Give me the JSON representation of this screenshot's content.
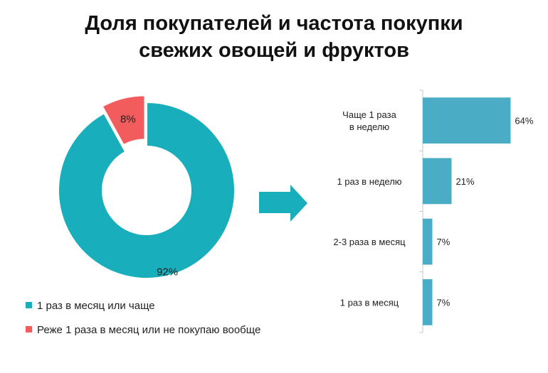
{
  "title_line1": "Доля покупателей и частота покупки",
  "title_line2": "свежих овощей и фруктов",
  "chart_data": [
    {
      "type": "pie",
      "variant": "donut",
      "slices": [
        {
          "name": "1 раз в месяц или чаще",
          "value": 92,
          "label": "92%",
          "color": "#19aebc"
        },
        {
          "name": "Реже 1 раза в месяц или не покупаю вообще",
          "value": 8,
          "label": "8%",
          "color": "#f25c5c"
        }
      ],
      "legend_position": "bottom-left"
    },
    {
      "type": "bar",
      "orientation": "horizontal",
      "categories": [
        "Чаще 1 раза в неделю",
        "1 раз в неделю",
        "2-3 раза в месяц",
        "1 раз в месяц"
      ],
      "values": [
        64,
        21,
        7,
        7
      ],
      "value_labels": [
        "64%",
        "21%",
        "7%",
        "7%"
      ],
      "color": "#4bacc6",
      "xlim": [
        0,
        70
      ]
    }
  ],
  "arrow_icon": "right-arrow-icon",
  "arrow_color": "#19aebc"
}
